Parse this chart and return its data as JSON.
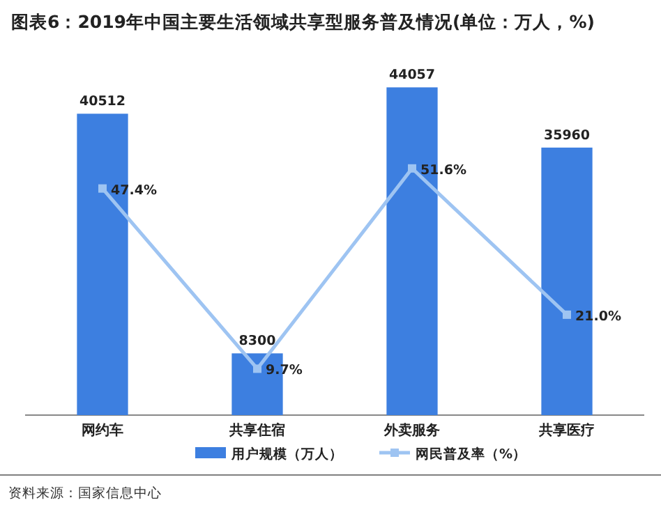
{
  "chart_data": {
    "type": "bar",
    "title": "图表6：2019年中国主要生活领域共享型服务普及情况(单位：万人，%)",
    "categories": [
      "网约车",
      "共享住宿",
      "外卖服务",
      "共享医疗"
    ],
    "series": [
      {
        "name": "用户规模（万人）",
        "color": "#3d7fe0",
        "values": [
          40512,
          8300,
          44057,
          35960
        ]
      },
      {
        "name": "网民普及率（%）",
        "type": "line",
        "axis": "y2",
        "color": "#9ec4f2",
        "marker": "square",
        "values": [
          47.4,
          9.7,
          51.6,
          21.0
        ],
        "value_labels": [
          "47.4%",
          "9.7%",
          "51.6%",
          "21.0%"
        ]
      }
    ],
    "data_labels": true,
    "legend": "bottom",
    "annotations": [
      "资料来源：国家信息中心"
    ]
  }
}
